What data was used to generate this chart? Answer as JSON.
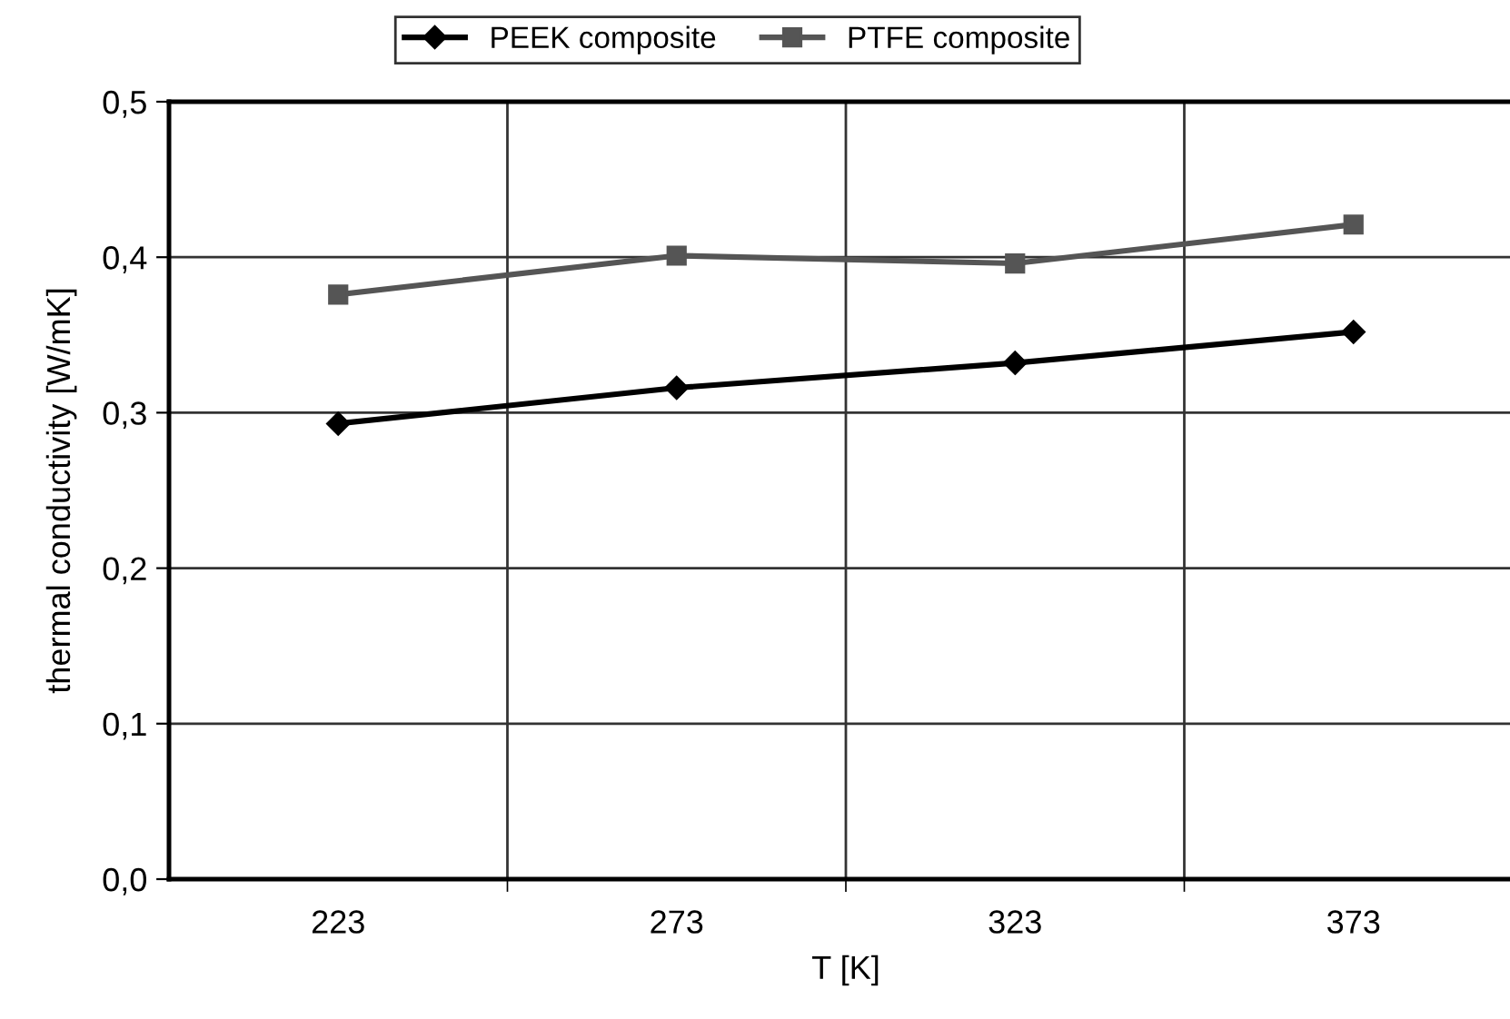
{
  "chart_data": {
    "type": "line",
    "xlabel": "T [K]",
    "ylabel": "thermal conductivity [W/mK]",
    "categories": [
      "223",
      "273",
      "323",
      "373"
    ],
    "series": [
      {
        "name": "PEEK composite",
        "color": "#000000",
        "marker": "diamond",
        "values": [
          0.293,
          0.316,
          0.332,
          0.352
        ]
      },
      {
        "name": "PTFE composite",
        "color": "#555555",
        "marker": "square",
        "values": [
          0.376,
          0.401,
          0.396,
          0.421
        ]
      }
    ],
    "ylim": [
      0,
      0.5
    ],
    "yticks": [
      {
        "value": 0,
        "label": "0,0"
      },
      {
        "value": 0.1,
        "label": "0,1"
      },
      {
        "value": 0.2,
        "label": "0,2"
      },
      {
        "value": 0.3,
        "label": "0,3"
      },
      {
        "value": 0.4,
        "label": "0,4"
      },
      {
        "value": 0.5,
        "label": "0,5"
      }
    ],
    "grid": true,
    "legend": "top",
    "line_style": "solid"
  }
}
